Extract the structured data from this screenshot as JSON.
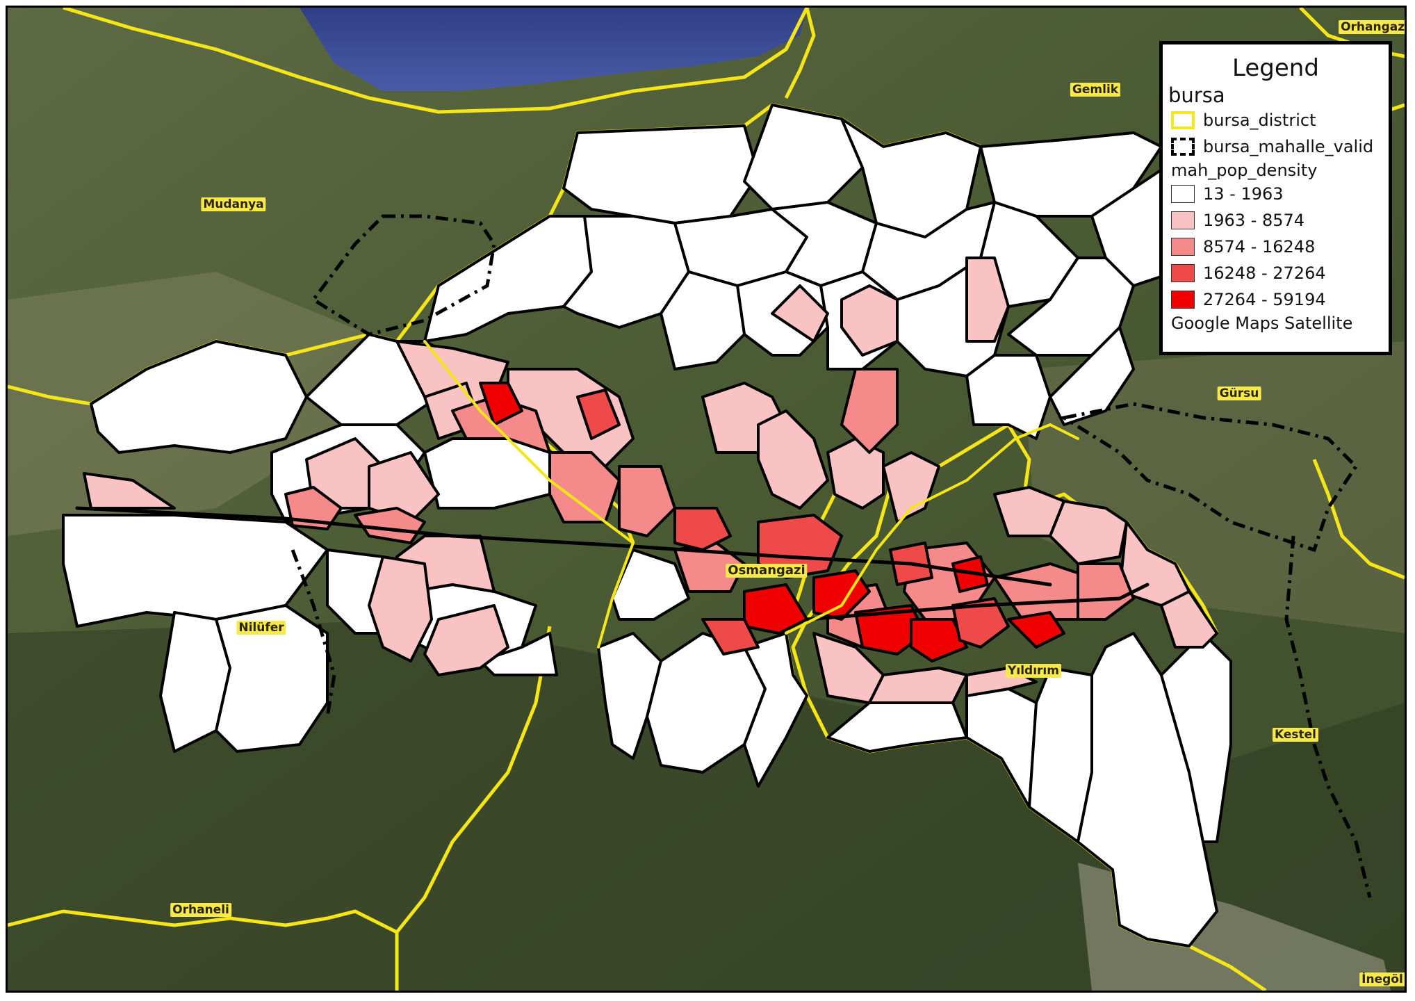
{
  "map": {
    "basemap": "Google Maps Satellite",
    "district_color": "#f5e61a",
    "mahalle_color": "#000000",
    "places": [
      {
        "name": "Orhangazi",
        "key": "orhangazi"
      },
      {
        "name": "Gemlik",
        "key": "gemlik"
      },
      {
        "name": "Mudanya",
        "key": "mudanya"
      },
      {
        "name": "Gürsu",
        "key": "gursu"
      },
      {
        "name": "Osmangazi",
        "key": "osmangazi"
      },
      {
        "name": "Nilüfer",
        "key": "nilufer"
      },
      {
        "name": "Yıldırım",
        "key": "yildirim"
      },
      {
        "name": "Kestel",
        "key": "kestel"
      },
      {
        "name": "Orhaneli",
        "key": "orhaneli"
      },
      {
        "name": "İnegöl",
        "key": "inegol"
      }
    ]
  },
  "legend": {
    "title": "Legend",
    "group": "bursa",
    "layers": {
      "district": "bursa_district",
      "mahalle": "bursa_mahalle_valid",
      "density_field": "mah_pop_density",
      "basemap": "Google Maps Satellite"
    },
    "classes": [
      {
        "label": "13 - 1963",
        "color": "#ffffff"
      },
      {
        "label": "1963 - 8574",
        "color": "#f9c3c3"
      },
      {
        "label": "8574 - 16248",
        "color": "#f58a8a"
      },
      {
        "label": "16248 - 27264",
        "color": "#ef4a4a"
      },
      {
        "label": "27264 - 59194",
        "color": "#f10000"
      }
    ]
  }
}
